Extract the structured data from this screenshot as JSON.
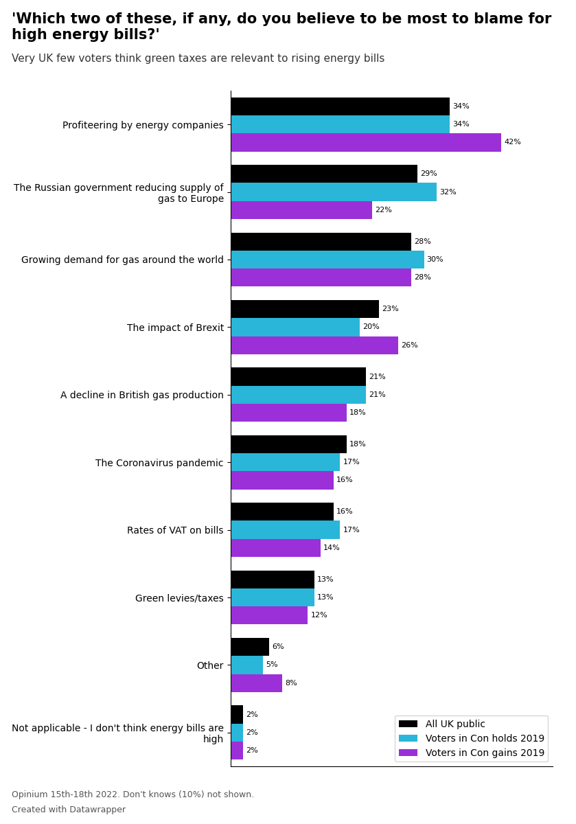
{
  "chart_data": {
    "type": "bar",
    "orientation": "horizontal",
    "title": "'Which two of these, if any, do you believe to be most to blame for high energy bills?'",
    "subtitle": "Very UK few voters think green taxes are relevant to rising energy bills",
    "categories": [
      "Profiteering by energy companies",
      "The Russian government reducing supply of\ngas to Europe",
      "Growing demand for gas around the world",
      "The impact of Brexit",
      "A decline in British gas production",
      "The Coronavirus pandemic",
      "Rates of VAT on bills",
      "Green levies/taxes",
      "Other",
      "Not applicable - I don't think energy bills are\nhigh"
    ],
    "series": [
      {
        "name": "All UK public",
        "color": "#000000",
        "values": [
          34,
          29,
          28,
          23,
          21,
          18,
          16,
          13,
          6,
          2
        ],
        "value_labels": [
          "34%",
          "29%",
          "28%",
          "23%",
          "21%",
          "18%",
          "16%",
          "13%",
          "6%",
          "2%"
        ]
      },
      {
        "name": "Voters in Con holds 2019",
        "color": "#29b6d8",
        "values": [
          34,
          32,
          30,
          20,
          21,
          17,
          17,
          13,
          5,
          2
        ],
        "value_labels": [
          "34%",
          "32%",
          "30%",
          "20%",
          "21%",
          "17%",
          "17%",
          "13%",
          "5%",
          "2%"
        ]
      },
      {
        "name": "Voters in Con gains 2019",
        "color": "#9b30d8",
        "values": [
          42,
          22,
          28,
          26,
          18,
          16,
          14,
          12,
          8,
          2
        ],
        "value_labels": [
          "42%",
          "22%",
          "28%",
          "26%",
          "18%",
          "16%",
          "14%",
          "12%",
          "8%",
          "2%"
        ]
      }
    ],
    "xlim": [
      0,
      50
    ],
    "tick_labels": "y",
    "data_labels": true,
    "legend": "lower right",
    "annotations": [
      "Opinium 15th-18th 2022. Don't knows (10%) not shown.",
      "Created with Datawrapper"
    ]
  }
}
